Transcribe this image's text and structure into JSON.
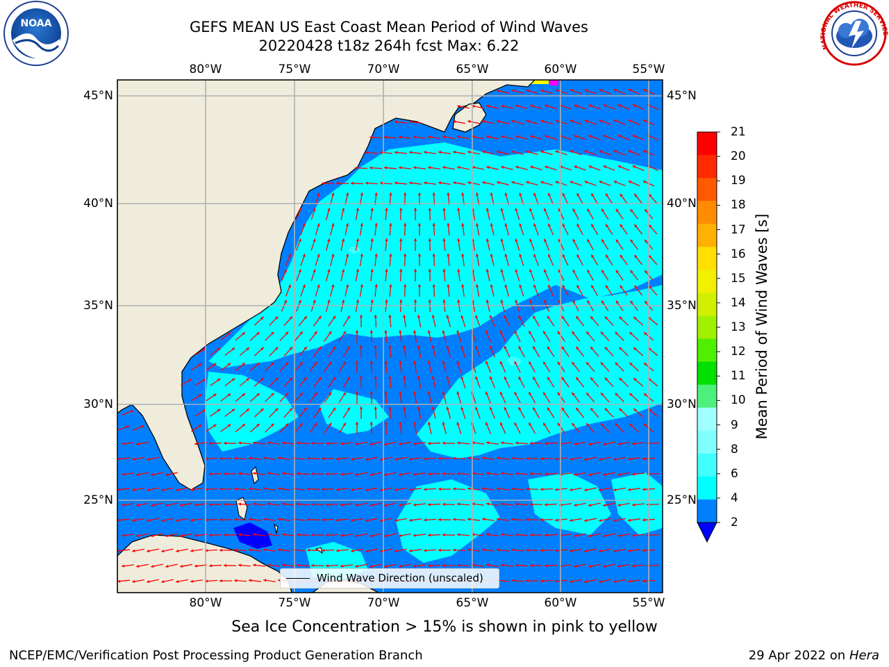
{
  "header": {
    "title": "GEFS MEAN US East Coast Mean Period of Wind Waves",
    "subtitle": "20220428 t18z 264h fcst   Max: 6.22"
  },
  "logos": {
    "noaa_text": "NOAA",
    "nws_text": "NATIONAL WEATHER SERVICE"
  },
  "map": {
    "lon_labels": [
      "80°W",
      "75°W",
      "70°W",
      "65°W",
      "60°W",
      "55°W"
    ],
    "lat_labels": [
      "45°N",
      "40°N",
      "35°N",
      "30°N",
      "25°N"
    ],
    "legend_label": "Wind Wave Direction (unscaled)",
    "colors": {
      "land": "#efecdc",
      "grid": "#b0b0b0",
      "arrow": "#ff0000",
      "coast": "#000000"
    }
  },
  "colorbar": {
    "title": "Mean Period of Wind Waves [s]",
    "ticks": [
      "2",
      "4",
      "6",
      "8",
      "9",
      "10",
      "11",
      "12",
      "13",
      "14",
      "15",
      "16",
      "17",
      "18",
      "19",
      "20",
      "21"
    ],
    "colors": [
      "#0080ff",
      "#00ffff",
      "#40ffff",
      "#80ffff",
      "#a0ffff",
      "#4cf07a",
      "#00e000",
      "#50ef00",
      "#a0f000",
      "#d0f000",
      "#f0f000",
      "#ffe000",
      "#ffb000",
      "#ff8c00",
      "#ff5a00",
      "#ff2a00",
      "#ff0000"
    ]
  },
  "footer": {
    "sea_ice_note": "Sea Ice Concentration > 15% is shown in pink to yellow",
    "credit_left": "NCEP/EMC/Verification Post Processing Product Generation Branch",
    "credit_date": "29 Apr 2022 on ",
    "credit_host": "Hera"
  }
}
